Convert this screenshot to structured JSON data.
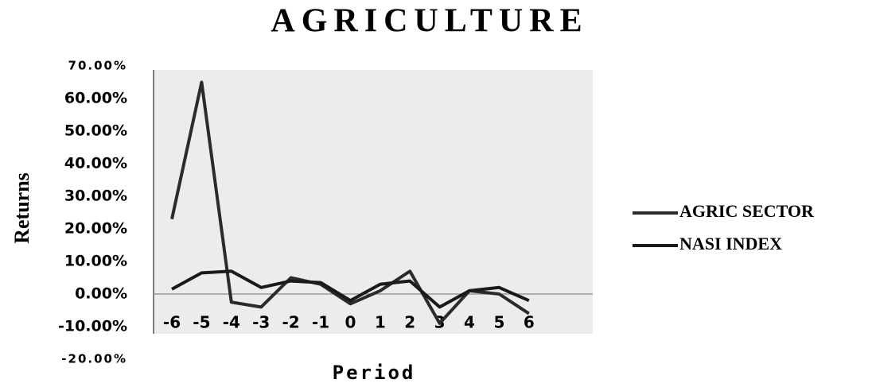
{
  "chart_data": {
    "type": "line",
    "title": "AGRICULTURE",
    "xlabel": "Period",
    "ylabel": "Returns",
    "categories": [
      "-6",
      "-5",
      "-4",
      "-3",
      "-2",
      "-1",
      "0",
      "1",
      "2",
      "3",
      "4",
      "5",
      "6"
    ],
    "series": [
      {
        "name": "AGRIC SECTOR",
        "color": "#2b2b2b",
        "values": [
          23,
          65,
          -2.5,
          -4,
          5,
          3,
          -3,
          1,
          7,
          -9,
          1,
          0,
          -6
        ]
      },
      {
        "name": "NASI INDEX",
        "color": "#1a1a1a",
        "values": [
          1.5,
          6.5,
          7,
          2,
          4,
          3.5,
          -2,
          3,
          4,
          -4,
          1,
          2,
          -2
        ]
      }
    ],
    "ylim": [
      -20,
      70
    ],
    "yticks": [
      {
        "value": 70,
        "label": "70.00%"
      },
      {
        "value": 60,
        "label": "60.00%"
      },
      {
        "value": 50,
        "label": "50.00%"
      },
      {
        "value": 40,
        "label": "40.00%"
      },
      {
        "value": 30,
        "label": "30.00%"
      },
      {
        "value": 20,
        "label": "20.00%"
      },
      {
        "value": 10,
        "label": "10.00%"
      },
      {
        "value": 0,
        "label": "0.00%"
      },
      {
        "value": -10,
        "label": "-10.00%"
      },
      {
        "value": -20,
        "label": "-20.00%"
      }
    ],
    "legend": "right"
  }
}
